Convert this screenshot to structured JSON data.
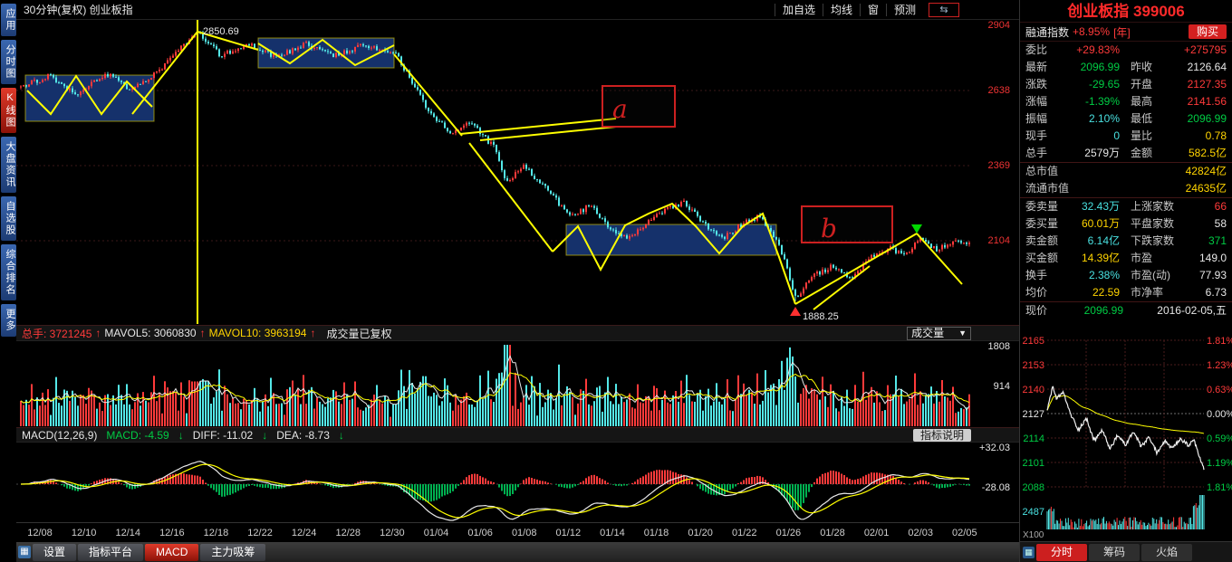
{
  "colors": {
    "red": "#ff3a3a",
    "green": "#00cc44",
    "cyan": "#49e0e0",
    "yellow": "#ffd400",
    "white": "#e6e6e6",
    "gray": "#bbbbbb",
    "axisred": "#ee3333",
    "up": "#ff3a3a",
    "down": "#54e8e8",
    "histgreen": "#00b050",
    "lineyellow": "#ffff00",
    "boxblue": "#15316b",
    "panelred": "#ff2a2a",
    "buy": "#d42020",
    "tabred": "#cc1f1f"
  },
  "icons": {
    "collapse": "⇆",
    "dropdown": "▼",
    "up_arrow": "↑",
    "down_arrow": "↓",
    "grid": "▦"
  },
  "sidebar": {
    "items": [
      "应用",
      "分时图",
      "K线图",
      "大盘资讯",
      "自选股",
      "综合排名",
      "更多"
    ]
  },
  "topbar": {
    "title": "30分钟(复权) 创业板指",
    "buttons": [
      "加自选",
      "均线",
      "窗",
      "预测"
    ]
  },
  "candle": {
    "axis": [
      "2904",
      "2638",
      "2369",
      "2104"
    ],
    "peak": "2850.69",
    "low": "1888.25",
    "a": "a",
    "b": "b"
  },
  "volume": {
    "zongshou": "总手: 3721245",
    "mavol5": "MAVOL5: 3060830",
    "mavol10": "MAVOL10: 3963194",
    "note": "成交量已复权",
    "selector": "成交量",
    "axis": [
      "1808",
      "914"
    ]
  },
  "macd": {
    "name": "MACD(12,26,9)",
    "macd": "MACD: -4.59",
    "diff": "DIFF: -11.02",
    "dea": "DEA: -8.73",
    "button": "指标说明",
    "axis_top": "+32.03",
    "axis_bottom": "-28.08"
  },
  "dates": [
    "12/08",
    "12/10",
    "12/14",
    "12/16",
    "12/18",
    "12/22",
    "12/24",
    "12/28",
    "12/30",
    "01/04",
    "01/06",
    "01/08",
    "01/12",
    "01/14",
    "01/18",
    "01/20",
    "01/22",
    "01/26",
    "01/28",
    "02/01",
    "02/03",
    "02/05"
  ],
  "bottom_tabs": {
    "shezhi": "设置",
    "zhibiao": "指标平台",
    "macd": "MACD",
    "zhuli": "主力吸筹"
  },
  "quote": {
    "title": "创业板指 399006",
    "rongtong": {
      "label": "融通指数",
      "value": "+8.95%",
      "unit": "[年]",
      "buy": "购买"
    },
    "rows": [
      {
        "ll": "委比",
        "lv": "+29.83%",
        "rl": "",
        "rv": "+275795"
      },
      {
        "ll": "最新",
        "lv": "2096.99",
        "rl": "昨收",
        "rv": "2126.64"
      },
      {
        "ll": "涨跌",
        "lv": "-29.65",
        "rl": "开盘",
        "rv": "2127.35"
      },
      {
        "ll": "涨幅",
        "lv": "-1.39%",
        "rl": "最高",
        "rv": "2141.56"
      },
      {
        "ll": "振幅",
        "lv": "2.10%",
        "rl": "最低",
        "rv": "2096.99"
      },
      {
        "ll": "现手",
        "lv": "0",
        "rl": "量比",
        "rv": "0.78"
      },
      {
        "ll": "总手",
        "lv": "2579万",
        "rl": "金额",
        "rv": "582.5亿"
      },
      {
        "ll": "委卖量",
        "lv": "32.43万",
        "rl": "上涨家数",
        "rv": "66"
      },
      {
        "ll": "委买量",
        "lv": "60.01万",
        "rl": "平盘家数",
        "rv": "58"
      },
      {
        "ll": "卖金额",
        "lv": "6.14亿",
        "rl": "下跌家数",
        "rv": "371"
      },
      {
        "ll": "买金额",
        "lv": "14.39亿",
        "rl": "市盈",
        "rv": "149.0"
      },
      {
        "ll": "换手",
        "lv": "2.38%",
        "rl": "市盈(动)",
        "rv": "77.93"
      },
      {
        "ll": "均价",
        "lv": "22.59",
        "rl": "市净率",
        "rv": "6.73"
      }
    ],
    "caps": [
      {
        "label": "总市值",
        "value": "42824亿"
      },
      {
        "label": "流通市值",
        "value": "24635亿"
      }
    ],
    "now": {
      "label": "现价",
      "value": "2096.99",
      "date": "2016-02-05,五"
    },
    "mini": {
      "left_axis": [
        "2165",
        "2153",
        "2140",
        "2127",
        "2114",
        "2101",
        "2088"
      ],
      "right_axis": [
        "1.81%",
        "1.23%",
        "0.63%",
        "0.00%",
        "0.59%",
        "1.19%",
        "1.81%"
      ],
      "vol_axis": "2487",
      "unit": "X100"
    },
    "tabs": [
      "分时",
      "筹码",
      "火焰"
    ]
  }
}
